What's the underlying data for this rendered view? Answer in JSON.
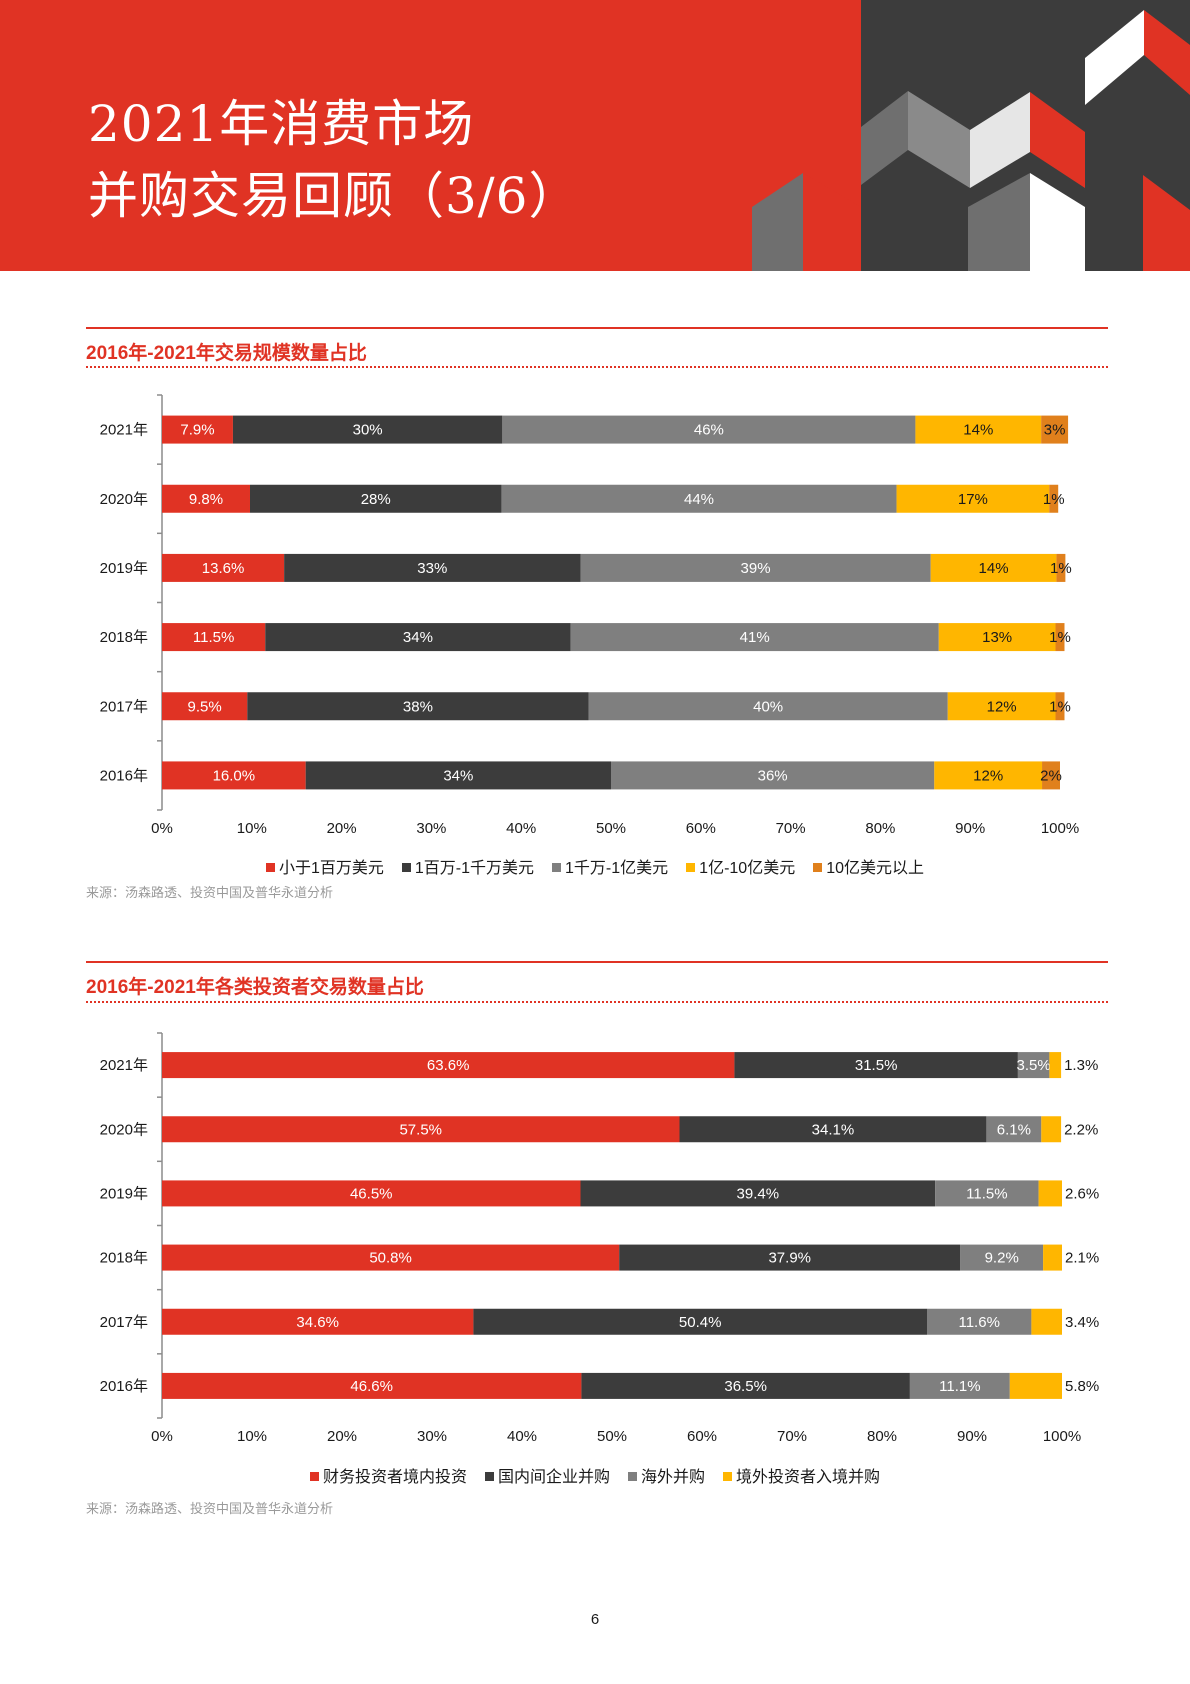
{
  "header": {
    "title_line1": "2021年消费市场",
    "title_line2": "并购交易回顾（3/6）",
    "background_color": "#e03324"
  },
  "charts": [
    {
      "title": "2016年-2021年交易规模数量占比",
      "source": "来源：汤森路透、投资中国及普华永道分析"
    },
    {
      "title": "2016年-2021年各类投资者交易数量占比",
      "source": "来源：汤森路透、投资中国及普华永道分析"
    }
  ],
  "page_number": "6",
  "chart_data": [
    {
      "type": "bar",
      "orientation": "horizontal",
      "stacked": true,
      "categories": [
        "2021年",
        "2020年",
        "2019年",
        "2018年",
        "2017年",
        "2016年"
      ],
      "xlim": [
        0,
        100
      ],
      "xticks": [
        "0%",
        "10%",
        "20%",
        "30%",
        "40%",
        "50%",
        "60%",
        "70%",
        "80%",
        "90%",
        "100%"
      ],
      "legend_position": "bottom",
      "series": [
        {
          "name": "小于1百万美元",
          "color": "#e03324",
          "label_color": "#ffffff",
          "values": [
            7.9,
            9.8,
            13.6,
            11.5,
            9.5,
            16.0
          ],
          "labels": [
            "7.9%",
            "9.8%",
            "13.6%",
            "11.5%",
            "9.5%",
            "16.0%"
          ]
        },
        {
          "name": "1百万-1千万美元",
          "color": "#3c3c3c",
          "label_color": "#ffffff",
          "values": [
            30,
            28,
            33,
            34,
            38,
            34
          ],
          "labels": [
            "30%",
            "28%",
            "33%",
            "34%",
            "38%",
            "34%"
          ]
        },
        {
          "name": "1千万-1亿美元",
          "color": "#7f7f7f",
          "label_color": "#ffffff",
          "values": [
            46,
            44,
            39,
            41,
            40,
            36
          ],
          "labels": [
            "46%",
            "44%",
            "39%",
            "41%",
            "40%",
            "36%"
          ]
        },
        {
          "name": "1亿-10亿美元",
          "color": "#ffb600",
          "label_color": "#1a1a1a",
          "values": [
            14,
            17,
            14,
            13,
            12,
            12
          ],
          "labels": [
            "14%",
            "17%",
            "14%",
            "13%",
            "12%",
            "12%"
          ]
        },
        {
          "name": "10亿美元以上",
          "color": "#e0801c",
          "label_color": "#1a1a1a",
          "values": [
            3,
            1,
            1,
            1,
            1,
            2
          ],
          "labels": [
            "3%",
            "1%",
            "1%",
            "1%",
            "1%",
            "2%"
          ]
        }
      ]
    },
    {
      "type": "bar",
      "orientation": "horizontal",
      "stacked": true,
      "categories": [
        "2021年",
        "2020年",
        "2019年",
        "2018年",
        "2017年",
        "2016年"
      ],
      "xlim": [
        0,
        100
      ],
      "xticks": [
        "0%",
        "10%",
        "20%",
        "30%",
        "40%",
        "50%",
        "60%",
        "70%",
        "80%",
        "90%",
        "100%"
      ],
      "legend_position": "bottom",
      "series": [
        {
          "name": "财务投资者境内投资",
          "color": "#e03324",
          "label_color": "#ffffff",
          "values": [
            63.6,
            57.5,
            46.5,
            50.8,
            34.6,
            46.6
          ],
          "labels": [
            "63.6%",
            "57.5%",
            "46.5%",
            "50.8%",
            "34.6%",
            "46.6%"
          ]
        },
        {
          "name": "国内间企业并购",
          "color": "#3c3c3c",
          "label_color": "#ffffff",
          "values": [
            31.5,
            34.1,
            39.4,
            37.9,
            50.4,
            36.5
          ],
          "labels": [
            "31.5%",
            "34.1%",
            "39.4%",
            "37.9%",
            "50.4%",
            "36.5%"
          ]
        },
        {
          "name": "海外并购",
          "color": "#7f7f7f",
          "label_color": "#ffffff",
          "values": [
            3.5,
            6.1,
            11.5,
            9.2,
            11.6,
            11.1
          ],
          "labels": [
            "3.5%",
            "6.1%",
            "11.5%",
            "9.2%",
            "11.6%",
            "11.1%"
          ]
        },
        {
          "name": "境外投资者入境并购",
          "color": "#ffb600",
          "label_color": "#1a1a1a",
          "label_outside": true,
          "values": [
            1.3,
            2.2,
            2.6,
            2.1,
            3.4,
            5.8
          ],
          "labels": [
            "1.3%",
            "2.2%",
            "2.6%",
            "2.1%",
            "3.4%",
            "5.8%"
          ]
        }
      ]
    }
  ]
}
